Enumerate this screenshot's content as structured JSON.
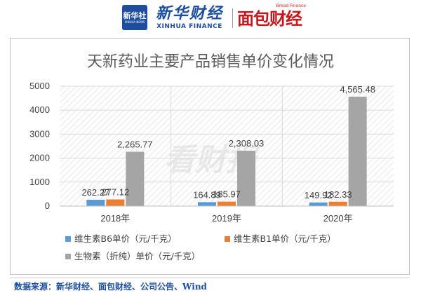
{
  "header": {
    "xinhua_badge_cn": "新华社",
    "xinhua_badge_en": "XINHUA NEWS",
    "xinhua_finance_cn": "新华财经",
    "xinhua_finance_en": "XINHUA FINANCE",
    "bread_finance_en": "Bread Finance",
    "bread_finance_cn": "面包财经"
  },
  "watermark": "看财报",
  "chart_data": {
    "type": "bar",
    "title": "天新药业主要产品销售单价变化情况",
    "categories": [
      "2018年",
      "2019年",
      "2020年"
    ],
    "y_ticks": [
      "0",
      "1000",
      "2000",
      "3000",
      "4000",
      "5000"
    ],
    "ylim": [
      0,
      5000
    ],
    "grid": true,
    "legend_position": "bottom",
    "series": [
      {
        "name": "维生素B6单价（元/千克）",
        "color": "#5b9bd5",
        "values": [
          262.27,
          164.89,
          149.92
        ],
        "labels": [
          "262.27",
          "164.89",
          "149.92"
        ]
      },
      {
        "name": "维生素B1单价（元/千克）",
        "color": "#ed7d31",
        "values": [
          277.12,
          185.97,
          182.33
        ],
        "labels": [
          "277.12",
          "185.97",
          "182.33"
        ]
      },
      {
        "name": "生物素（折纯）单价（元/千克）",
        "color": "#a5a5a5",
        "values": [
          2265.77,
          2308.03,
          4565.48
        ],
        "labels": [
          "2,265.77",
          "2,308.03",
          "4,565.48"
        ]
      }
    ]
  },
  "source": "数据来源：新华财经、面包财经、公司公告、Wind"
}
